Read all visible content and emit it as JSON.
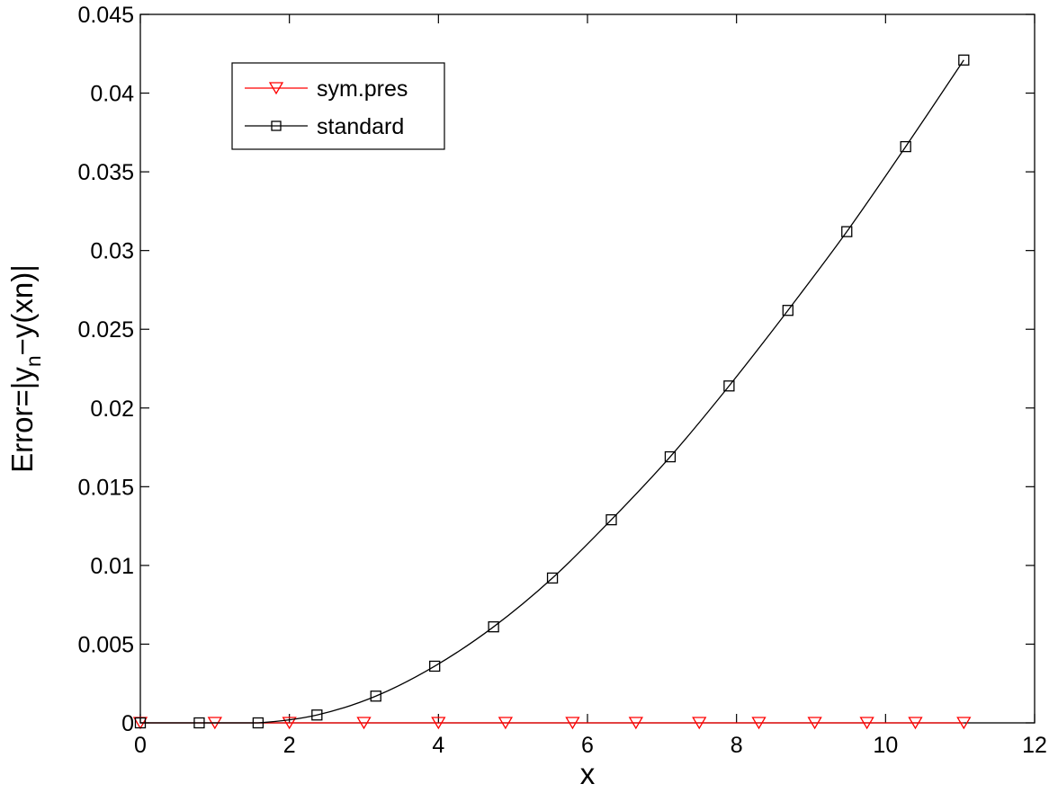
{
  "chart_data": {
    "type": "line",
    "title": "",
    "xlabel": "x",
    "ylabel": {
      "prefix": "Error=|y",
      "subscript": "n",
      "suffix": "−y(xn)|"
    },
    "xlim": [
      0,
      12
    ],
    "ylim": [
      0,
      0.045
    ],
    "x_ticks": [
      "0",
      "2",
      "4",
      "6",
      "8",
      "10",
      "12"
    ],
    "y_ticks": [
      "0",
      "0.005",
      "0.01",
      "0.015",
      "0.02",
      "0.025",
      "0.03",
      "0.035",
      "0.04",
      "0.045"
    ],
    "grid": false,
    "legend_position": "top-left",
    "series": [
      {
        "name": "sym.pres",
        "color": "#ff0000",
        "marker": "triangle-down",
        "line_x": [
          0,
          11.05
        ],
        "line_y": [
          0,
          0
        ],
        "marker_x": [
          0,
          1.0,
          2.0,
          3.0,
          4.0,
          4.9,
          5.8,
          6.65,
          7.5,
          8.3,
          9.05,
          9.75,
          10.4,
          11.05
        ],
        "marker_y": [
          0,
          0,
          0,
          0,
          0,
          0,
          0,
          0,
          0,
          0,
          0,
          0,
          0,
          0
        ]
      },
      {
        "name": "standard",
        "color": "#000000",
        "marker": "square",
        "x": [
          0,
          0.79,
          1.58,
          2.37,
          3.16,
          3.95,
          4.74,
          5.53,
          6.32,
          7.11,
          7.9,
          8.69,
          9.48,
          10.27,
          11.05
        ],
        "y": [
          0,
          0,
          0,
          0.0005,
          0.0017,
          0.0036,
          0.0061,
          0.0092,
          0.0129,
          0.0169,
          0.0214,
          0.0262,
          0.0312,
          0.0366,
          0.0421
        ]
      }
    ]
  }
}
